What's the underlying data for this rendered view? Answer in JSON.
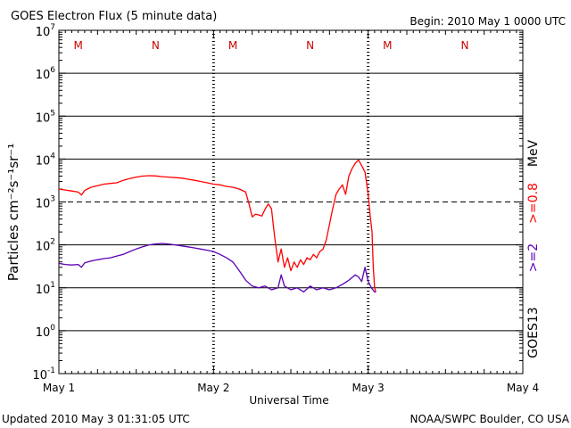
{
  "header": {
    "title": "GOES Electron Flux (5 minute data)",
    "begin": "Begin: 2010 May 1 0000 UTC"
  },
  "footer": {
    "updated": "Updated 2010 May  3 01:31:05 UTC",
    "credit": "NOAA/SWPC Boulder, CO USA"
  },
  "colors": {
    "series_08": "#ff0000",
    "series_2": "#5a00b4",
    "axis": "#000000",
    "marker": "#cc0000"
  },
  "chart_data": {
    "type": "line",
    "title": "GOES Electron Flux (5 minute data)",
    "xlabel": "Universal Time",
    "ylabel": "Particles cm⁻²s⁻¹sr⁻¹",
    "yscale": "log",
    "ylim": [
      0.1,
      10000000
    ],
    "xlim": [
      0,
      72
    ],
    "x_unit": "hours since 2010 May 1 0000 UTC",
    "x_ticks": [
      {
        "x": 0,
        "label": "May 1"
      },
      {
        "x": 24,
        "label": "May 2"
      },
      {
        "x": 48,
        "label": "May 3"
      },
      {
        "x": 72,
        "label": "May 4"
      }
    ],
    "y_ticks": [
      {
        "value": 10000000,
        "mantissa": "10",
        "exp": "7"
      },
      {
        "value": 1000000,
        "mantissa": "10",
        "exp": "6"
      },
      {
        "value": 100000,
        "mantissa": "10",
        "exp": "5"
      },
      {
        "value": 10000,
        "mantissa": "10",
        "exp": "4"
      },
      {
        "value": 1000,
        "mantissa": "10",
        "exp": "3"
      },
      {
        "value": 100,
        "mantissa": "10",
        "exp": "2"
      },
      {
        "value": 10,
        "mantissa": "10",
        "exp": "1"
      },
      {
        "value": 1,
        "mantissa": "10",
        "exp": "0"
      },
      {
        "value": 0.1,
        "mantissa": "10",
        "exp": "-1"
      }
    ],
    "threshold_line": 1000,
    "mn_markers": [
      {
        "x": 3,
        "label": "M"
      },
      {
        "x": 15,
        "label": "N"
      },
      {
        "x": 27,
        "label": "M"
      },
      {
        "x": 39,
        "label": "N"
      },
      {
        "x": 51,
        "label": "M"
      },
      {
        "x": 63,
        "label": "N"
      }
    ],
    "right_labels": {
      "satellite": "GOES13",
      "series_2_label": ">=2",
      "series_08_label": ">=0.8",
      "unit": "MeV"
    },
    "series": [
      {
        "name": ">=0.8 MeV",
        "color": "#ff0000",
        "points": [
          [
            0,
            2000
          ],
          [
            1,
            1900
          ],
          [
            2,
            1800
          ],
          [
            3,
            1700
          ],
          [
            3.5,
            1450
          ],
          [
            4,
            1850
          ],
          [
            5,
            2200
          ],
          [
            6,
            2400
          ],
          [
            7,
            2600
          ],
          [
            8,
            2700
          ],
          [
            9,
            2800
          ],
          [
            10,
            3200
          ],
          [
            11,
            3500
          ],
          [
            12,
            3800
          ],
          [
            13,
            4000
          ],
          [
            14,
            4100
          ],
          [
            15,
            4050
          ],
          [
            16,
            3900
          ],
          [
            17,
            3800
          ],
          [
            18,
            3700
          ],
          [
            19,
            3600
          ],
          [
            20,
            3400
          ],
          [
            21,
            3200
          ],
          [
            22,
            3000
          ],
          [
            23,
            2800
          ],
          [
            24,
            2600
          ],
          [
            25,
            2500
          ],
          [
            26,
            2300
          ],
          [
            27,
            2200
          ],
          [
            28,
            2000
          ],
          [
            29,
            1700
          ],
          [
            29.5,
            900
          ],
          [
            30,
            450
          ],
          [
            30.5,
            520
          ],
          [
            31,
            500
          ],
          [
            31.5,
            470
          ],
          [
            32,
            680
          ],
          [
            32.5,
            900
          ],
          [
            33,
            700
          ],
          [
            33.5,
            150
          ],
          [
            34,
            40
          ],
          [
            34.5,
            80
          ],
          [
            35,
            30
          ],
          [
            35.5,
            50
          ],
          [
            36,
            25
          ],
          [
            36.5,
            40
          ],
          [
            37,
            30
          ],
          [
            37.5,
            45
          ],
          [
            38,
            35
          ],
          [
            38.5,
            50
          ],
          [
            39,
            45
          ],
          [
            39.5,
            60
          ],
          [
            40,
            50
          ],
          [
            40.5,
            70
          ],
          [
            41,
            80
          ],
          [
            41.5,
            130
          ],
          [
            42,
            300
          ],
          [
            42.5,
            700
          ],
          [
            43,
            1500
          ],
          [
            43.5,
            2000
          ],
          [
            44,
            2500
          ],
          [
            44.5,
            1500
          ],
          [
            45,
            4000
          ],
          [
            45.5,
            6000
          ],
          [
            46,
            8000
          ],
          [
            46.5,
            9500
          ],
          [
            47,
            7000
          ],
          [
            47.5,
            5000
          ],
          [
            48,
            1500
          ],
          [
            48.3,
            500
          ],
          [
            48.6,
            200
          ],
          [
            48.8,
            30
          ],
          [
            49,
            10
          ],
          [
            49.2,
            8
          ]
        ]
      },
      {
        "name": ">=2 MeV",
        "color": "#5a00b4",
        "points": [
          [
            0,
            37
          ],
          [
            1,
            35
          ],
          [
            2,
            34
          ],
          [
            3,
            35
          ],
          [
            3.5,
            30
          ],
          [
            4,
            38
          ],
          [
            5,
            42
          ],
          [
            6,
            45
          ],
          [
            7,
            48
          ],
          [
            8,
            50
          ],
          [
            9,
            55
          ],
          [
            10,
            60
          ],
          [
            11,
            70
          ],
          [
            12,
            80
          ],
          [
            13,
            90
          ],
          [
            14,
            100
          ],
          [
            15,
            105
          ],
          [
            16,
            108
          ],
          [
            17,
            105
          ],
          [
            18,
            100
          ],
          [
            19,
            95
          ],
          [
            20,
            90
          ],
          [
            21,
            85
          ],
          [
            22,
            80
          ],
          [
            23,
            75
          ],
          [
            24,
            70
          ],
          [
            25,
            60
          ],
          [
            26,
            50
          ],
          [
            27,
            40
          ],
          [
            28,
            25
          ],
          [
            29,
            15
          ],
          [
            30,
            11
          ],
          [
            31,
            10
          ],
          [
            32,
            11
          ],
          [
            33,
            9
          ],
          [
            34,
            10
          ],
          [
            34.5,
            20
          ],
          [
            35,
            11
          ],
          [
            36,
            9
          ],
          [
            37,
            10
          ],
          [
            38,
            8
          ],
          [
            39,
            11
          ],
          [
            40,
            9
          ],
          [
            41,
            10
          ],
          [
            42,
            9
          ],
          [
            43,
            10
          ],
          [
            44,
            12
          ],
          [
            45,
            15
          ],
          [
            46,
            20
          ],
          [
            46.5,
            18
          ],
          [
            47,
            14
          ],
          [
            47.5,
            30
          ],
          [
            48,
            14
          ],
          [
            48.5,
            10
          ],
          [
            49,
            8
          ],
          [
            49.2,
            8
          ]
        ]
      }
    ]
  }
}
